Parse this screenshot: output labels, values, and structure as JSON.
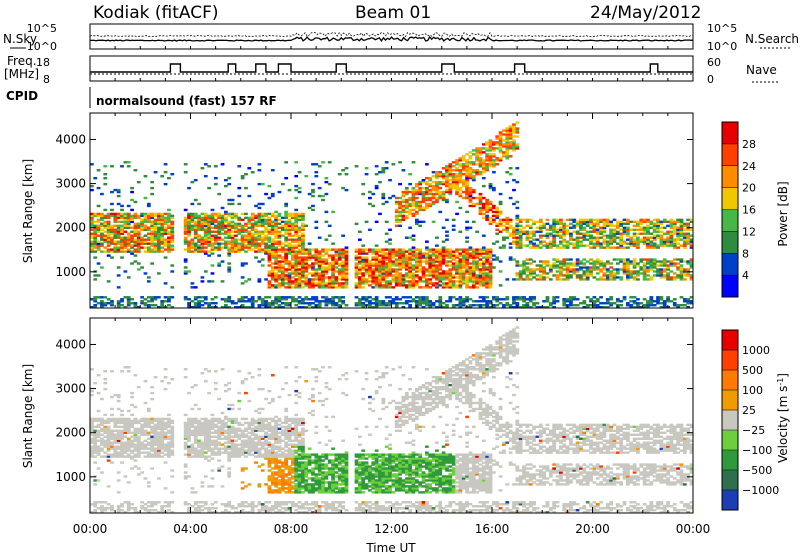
{
  "header": {
    "station": "Kodiak (fitACF)",
    "beam": "Beam 01",
    "date": "24/May/2012"
  },
  "top_left_labels": {
    "nsky": "N.Sky",
    "freq": "Freq.",
    "freq_unit": "[MHz]",
    "cpid": "CPID"
  },
  "top_right_labels": {
    "nsearch": "N.Search",
    "nave": "Nave"
  },
  "noise_axis": {
    "left_ticks": [
      "10^5",
      "10^0"
    ],
    "right_ticks": [
      "10^5",
      "10^0"
    ]
  },
  "freq_axis": {
    "left_ticks": [
      "18",
      "8"
    ],
    "right_ticks": [
      "60",
      "0"
    ]
  },
  "cpid_text": "normalsound (fast) 157 RF",
  "x_axis": {
    "label": "Time UT",
    "ticks": [
      "00:00",
      "04:00",
      "08:00",
      "12:00",
      "16:00",
      "20:00",
      "00:00"
    ]
  },
  "chart_data": [
    {
      "type": "heatmap",
      "name": "power",
      "ylabel": "Slant Range [km]",
      "yticks": [
        1000,
        2000,
        3000,
        4000
      ],
      "ylim": [
        180,
        4600
      ],
      "xlabel": "Time UT",
      "colorbar": {
        "label": "Power [dB]",
        "tick_labels": [
          "28",
          "24",
          "20",
          "16",
          "12",
          "8",
          "4"
        ],
        "colors": [
          "#0000ff",
          "#0040c8",
          "#2f8c3e",
          "#46b846",
          "#f0c800",
          "#ff8c00",
          "#ff4000",
          "#e60000"
        ]
      }
    },
    {
      "type": "heatmap",
      "name": "velocity",
      "ylabel": "Slant Range [km]",
      "yticks": [
        1000,
        2000,
        3000,
        4000
      ],
      "ylim": [
        180,
        4600
      ],
      "xlabel": "Time UT",
      "colorbar": {
        "label": "Velocity [m s",
        "label_sup": "-1",
        "label_end": "]",
        "tick_labels": [
          "1000",
          "500",
          "100",
          "25",
          "−25",
          "−100",
          "−500",
          "−1000"
        ],
        "colors": [
          "#1e3cb4",
          "#2f6f4f",
          "#2f9a3c",
          "#6ccf3c",
          "#c8c8c0",
          "#f09c00",
          "#ff7a00",
          "#ff4000",
          "#e60000"
        ]
      }
    }
  ]
}
